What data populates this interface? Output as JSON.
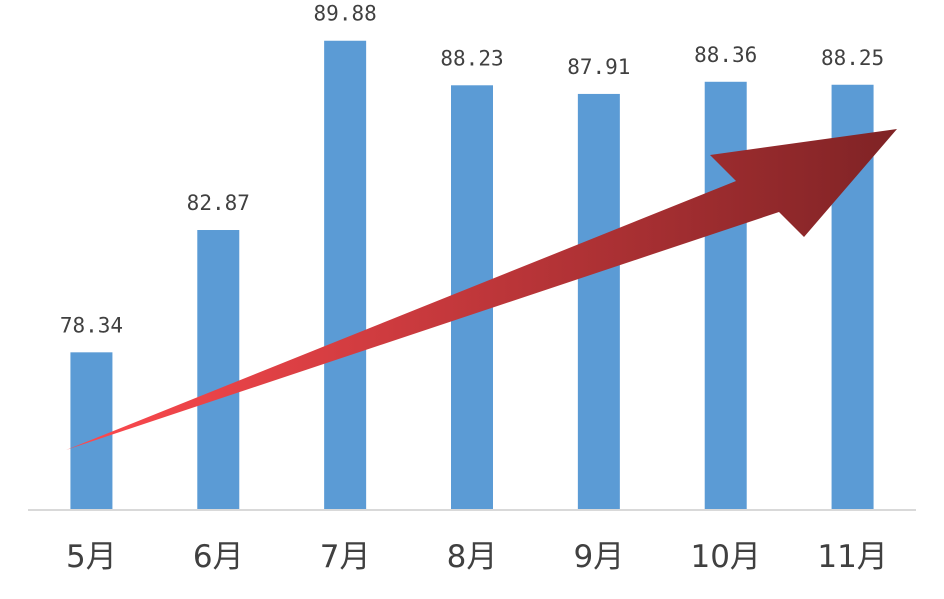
{
  "chart_data": {
    "type": "bar",
    "categories": [
      "5月",
      "6月",
      "7月",
      "8月",
      "9月",
      "10月",
      "11月"
    ],
    "values": [
      78.34,
      82.87,
      89.88,
      88.23,
      87.91,
      88.36,
      88.25
    ],
    "data_labels": [
      "78.34",
      "82.87",
      "89.88",
      "88.23",
      "87.91",
      "88.36",
      "88.25"
    ],
    "title": "",
    "xlabel": "",
    "ylabel": "",
    "ylim": [
      72.5,
      90.5
    ],
    "grid": false,
    "legend": "none",
    "colors": {
      "bar": "#5b9bd5",
      "text": "#404040",
      "axis": "#d9d9d9",
      "arrow_start": "#ff4a4f",
      "arrow_end": "#7f2325"
    },
    "annotations": [
      {
        "type": "trend-arrow",
        "direction": "up-right",
        "from_category": "5月",
        "to_category": "11月"
      }
    ]
  }
}
